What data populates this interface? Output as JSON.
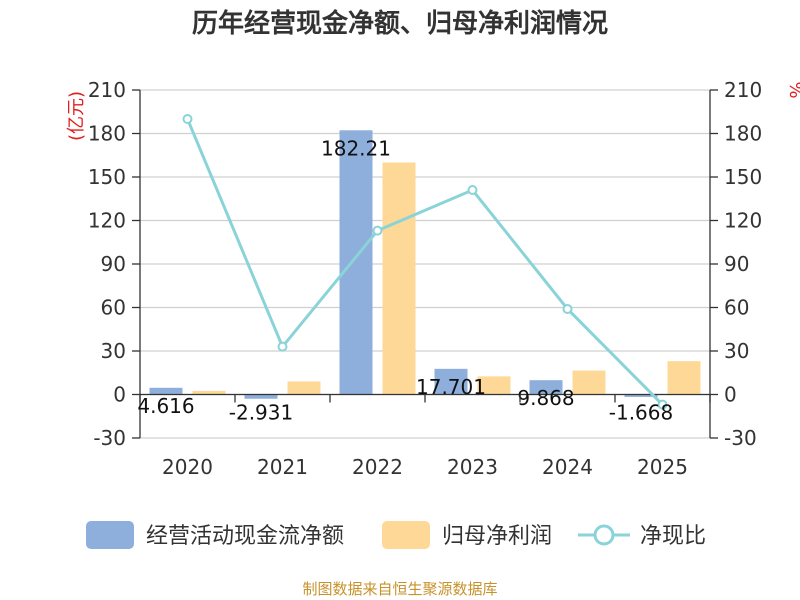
{
  "chart_data": {
    "type": "bar",
    "title": "历年经营现金净额、归母净利润情况",
    "categories": [
      "2020",
      "2021",
      "2022",
      "2023",
      "2024",
      "2025"
    ],
    "series": [
      {
        "name": "经营活动现金流净额",
        "type": "bar",
        "axis": "left",
        "color": "#8eaedb",
        "values": [
          4.616,
          -2.931,
          182.21,
          17.701,
          9.868,
          -1.668
        ],
        "labels": [
          "4.616",
          "-2.931",
          "182.21",
          "17.701",
          "9.868",
          "-1.668"
        ]
      },
      {
        "name": "归母净利润",
        "type": "bar",
        "axis": "left",
        "color": "#fdd897",
        "values": [
          2.5,
          9.0,
          160.0,
          12.5,
          16.5,
          23.0
        ]
      },
      {
        "name": "净现比",
        "type": "line",
        "axis": "right",
        "color": "#8ad3d8",
        "values": [
          190,
          33,
          113,
          141,
          59,
          -7
        ]
      }
    ],
    "left_axis": {
      "label": "(亿元)",
      "ylim": [
        -30,
        210
      ],
      "ticks": [
        210,
        180,
        150,
        120,
        90,
        60,
        30,
        0,
        -30
      ]
    },
    "right_axis": {
      "label": "%",
      "ylim": [
        -30,
        210
      ],
      "ticks": [
        210,
        180,
        150,
        120,
        90,
        60,
        30,
        0,
        -30
      ]
    },
    "grid": true,
    "legend_position": "bottom"
  },
  "source": "制图数据来自恒生聚源数据库"
}
